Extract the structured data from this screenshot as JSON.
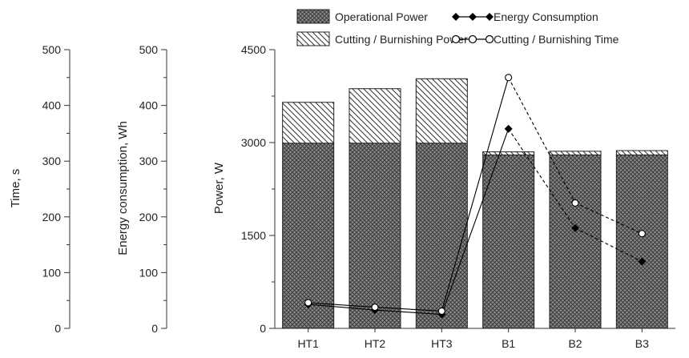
{
  "chart_data": {
    "type": "bar",
    "categories": [
      "HT1",
      "HT2",
      "HT3",
      "B1",
      "B2",
      "B3"
    ],
    "series": [
      {
        "name": "Operational Power",
        "kind": "stacked-bar",
        "axis": "power",
        "pattern": "crosshatch-dark",
        "values": [
          2990,
          2990,
          2990,
          2800,
          2800,
          2800
        ]
      },
      {
        "name": "Cutting / Burnishing Power",
        "kind": "stacked-bar",
        "axis": "power",
        "pattern": "diagonal-hatch",
        "values": [
          660,
          880,
          1040,
          50,
          60,
          70
        ]
      },
      {
        "name": "Energy Consumption",
        "kind": "line",
        "axis": "energy",
        "marker": "filled-diamond",
        "values": [
          43,
          33,
          25,
          358,
          180,
          120
        ]
      },
      {
        "name": "Cutting / Burnishing Time",
        "kind": "line",
        "axis": "time",
        "marker": "open-circle",
        "values": [
          46,
          38,
          31,
          450,
          225,
          170
        ]
      }
    ],
    "axes": {
      "time": {
        "label": "Time, s",
        "min": 0,
        "max": 500,
        "ticks": [
          0,
          100,
          200,
          300,
          400,
          500
        ],
        "minor_step": 50
      },
      "energy": {
        "label": "Energy consumption, Wh",
        "min": 0,
        "max": 500,
        "ticks": [
          0,
          100,
          200,
          300,
          400,
          500
        ],
        "minor_step": 50
      },
      "power": {
        "label": "Power, W",
        "min": 0,
        "max": 4500,
        "ticks": [
          0,
          1500,
          3000,
          4500
        ],
        "minor_step": 750
      }
    },
    "legend": {
      "placement": "top",
      "items": [
        {
          "label": "Operational Power",
          "symbol": "crosshatch-box"
        },
        {
          "label": "Energy Consumption",
          "symbol": "filled-diamond-line"
        },
        {
          "label": "Cutting / Burnishing Power",
          "symbol": "hatch-box"
        },
        {
          "label": "Cutting / Burnishing Time",
          "symbol": "open-circle-line"
        }
      ]
    },
    "grid": false
  }
}
